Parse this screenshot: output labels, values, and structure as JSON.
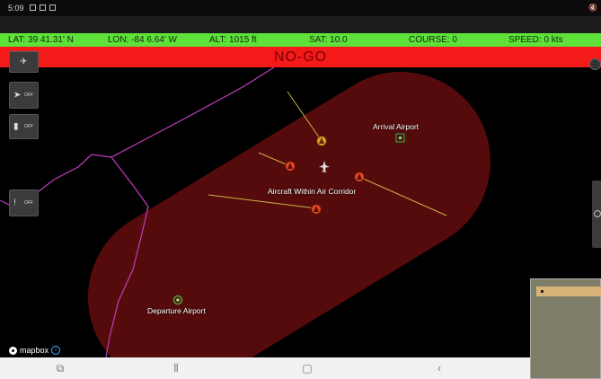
{
  "status_bar": {
    "time": "5:09"
  },
  "telemetry": {
    "lat": "LAT: 39 41.31' N",
    "lon": "LON: -84 6.64' W",
    "alt": "ALT: 1015 ft",
    "sat": "SAT: 10.0",
    "course": "COURSE: 0",
    "speed": "SPEED: 0 kts"
  },
  "banner": {
    "text": "NO-GO",
    "color": "#f41a1a"
  },
  "side_buttons": [
    {
      "icon": "airplane-icon",
      "label": ""
    },
    {
      "icon": "navigation-arrow-icon",
      "label": "OFF"
    },
    {
      "icon": "layers-icon",
      "label": "OFF"
    },
    {
      "icon": "alert-icon",
      "label": "OFF"
    }
  ],
  "map": {
    "corridor_color": "#5a0c0c",
    "boundary_color": "#c03cc0",
    "labels": {
      "arrival": "Arrival Airport",
      "departure": "Departure Airport",
      "aircraft_in_corridor": "Aircraft Within Air Corridor"
    },
    "attribution": "mapbox"
  },
  "nav_bar": {
    "icons": [
      "recent-apps-icon",
      "menu-icon",
      "home-icon",
      "back-icon"
    ]
  }
}
